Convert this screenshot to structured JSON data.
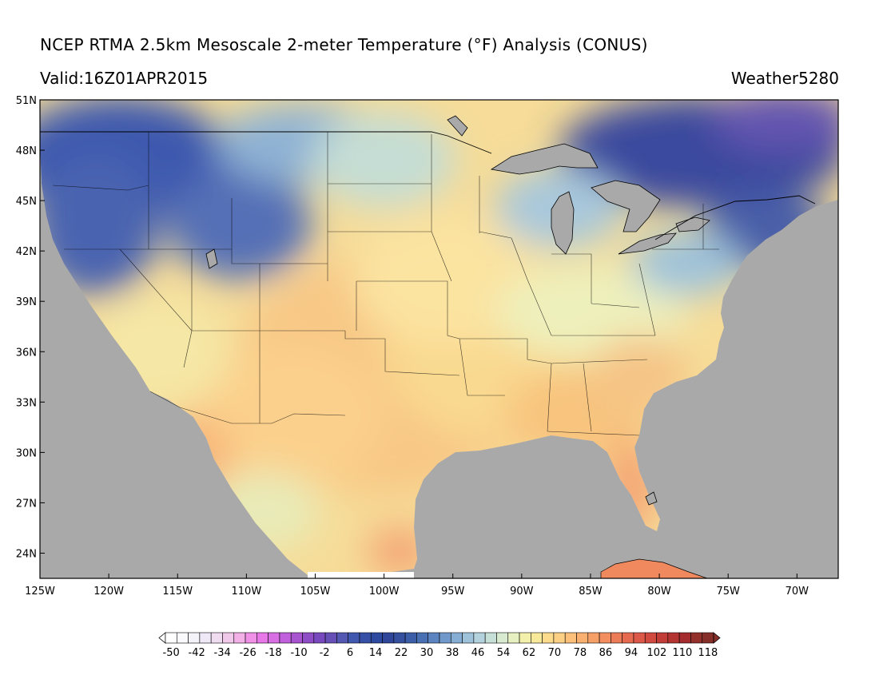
{
  "header": {
    "title": "NCEP RTMA 2.5km Mesoscale 2-meter Temperature (°F) Analysis (CONUS)",
    "valid": "Valid:16Z01APR2015",
    "credit": "Weather5280"
  },
  "map": {
    "projection": "lat-lon",
    "lon_range": [
      -125,
      -67
    ],
    "lat_range": [
      22.5,
      51
    ],
    "water_color": "#a9a9a9",
    "lat_ticks": [
      {
        "lat": 51,
        "label": "51N"
      },
      {
        "lat": 48,
        "label": "48N"
      },
      {
        "lat": 45,
        "label": "45N"
      },
      {
        "lat": 42,
        "label": "42N"
      },
      {
        "lat": 39,
        "label": "39N"
      },
      {
        "lat": 36,
        "label": "36N"
      },
      {
        "lat": 33,
        "label": "33N"
      },
      {
        "lat": 30,
        "label": "30N"
      },
      {
        "lat": 27,
        "label": "27N"
      },
      {
        "lat": 24,
        "label": "24N"
      }
    ],
    "lon_ticks": [
      {
        "lon": -125,
        "label": "125W"
      },
      {
        "lon": -120,
        "label": "120W"
      },
      {
        "lon": -115,
        "label": "115W"
      },
      {
        "lon": -110,
        "label": "110W"
      },
      {
        "lon": -105,
        "label": "105W"
      },
      {
        "lon": -100,
        "label": "100W"
      },
      {
        "lon": -95,
        "label": "95W"
      },
      {
        "lon": -90,
        "label": "90W"
      },
      {
        "lon": -85,
        "label": "85W"
      },
      {
        "lon": -80,
        "label": "80W"
      },
      {
        "lon": -75,
        "label": "75W"
      },
      {
        "lon": -70,
        "label": "70W"
      }
    ]
  },
  "colorbar": {
    "units": "°F",
    "min": -50,
    "max": 118,
    "step": 4,
    "labels": [
      "-50",
      "-42",
      "-34",
      "-26",
      "-18",
      "-10",
      "-2",
      "6",
      "14",
      "22",
      "30",
      "38",
      "46",
      "54",
      "62",
      "70",
      "78",
      "86",
      "94",
      "102",
      "110",
      "118"
    ],
    "colors": [
      "#ffffff",
      "#fafafd",
      "#f5f3fa",
      "#efe8f6",
      "#f0dcf0",
      "#f0c8ea",
      "#f2b0e6",
      "#f090e6",
      "#e878e8",
      "#d870e4",
      "#c060dc",
      "#a854d0",
      "#8e4cc6",
      "#7848be",
      "#6650b8",
      "#5458b2",
      "#4058b0",
      "#3550a6",
      "#2e4aa0",
      "#30469a",
      "#34509e",
      "#3c5ea8",
      "#4a70b4",
      "#5c84c0",
      "#7098ca",
      "#86aed4",
      "#9ec2da",
      "#b4d2de",
      "#c6e0d8",
      "#d8ead0",
      "#e6f0c0",
      "#f2f0aa",
      "#f8e89a",
      "#fcdc8c",
      "#fcd084",
      "#fcc07a",
      "#f9b070",
      "#f6a068",
      "#f28e60",
      "#ec7c58",
      "#e66a50",
      "#dc5848",
      "#d04a40",
      "#c23c38",
      "#b43432",
      "#a42c2e",
      "#94302c",
      "#862e2a"
    ]
  }
}
